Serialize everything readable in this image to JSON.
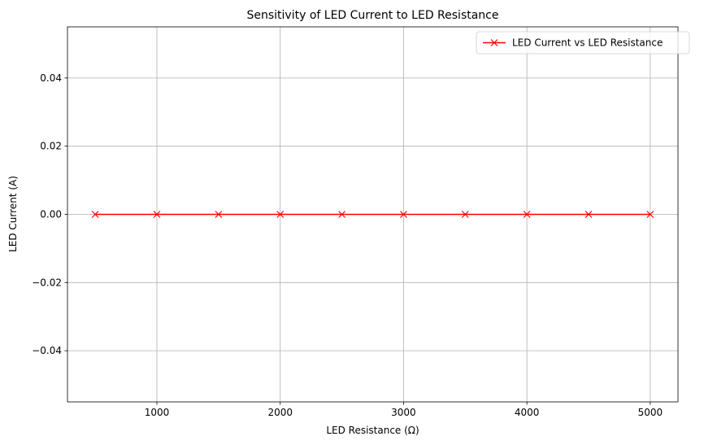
{
  "chart_data": {
    "type": "line",
    "title": "Sensitivity of LED Current to LED Resistance",
    "xlabel": "LED Resistance (Ω)",
    "ylabel": "LED Current (A)",
    "xlim": [
      275,
      5225
    ],
    "ylim": [
      -0.055,
      0.055
    ],
    "xticks": [
      1000,
      2000,
      3000,
      4000,
      5000
    ],
    "xtick_labels": [
      "1000",
      "2000",
      "3000",
      "4000",
      "5000"
    ],
    "yticks": [
      -0.04,
      -0.02,
      0.0,
      0.02,
      0.04
    ],
    "ytick_labels": [
      "−0.04",
      "−0.02",
      "0.00",
      "0.02",
      "0.04"
    ],
    "grid": true,
    "legend": {
      "position": "top-right"
    },
    "series": [
      {
        "name": "LED Current vs LED Resistance",
        "color": "#ff0000",
        "marker": "x",
        "x": [
          500,
          1000,
          1500,
          2000,
          2500,
          3000,
          3500,
          4000,
          4500,
          5000
        ],
        "y": [
          0,
          0,
          0,
          0,
          0,
          0,
          0,
          0,
          0,
          0
        ]
      }
    ]
  }
}
